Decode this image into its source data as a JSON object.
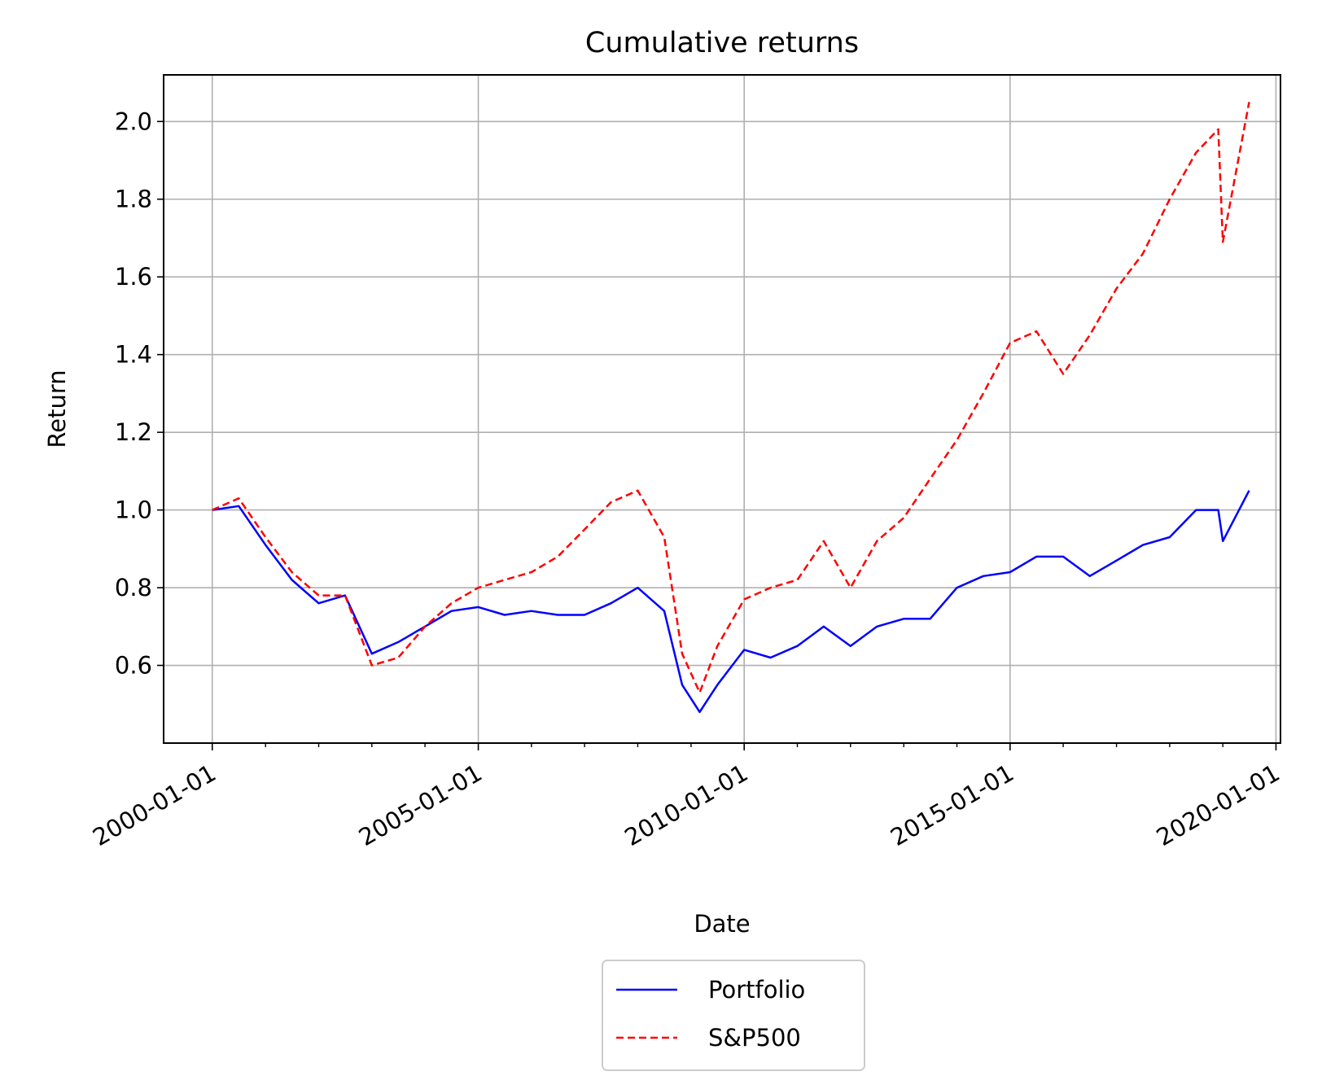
{
  "chart_data": {
    "type": "line",
    "title": "Cumulative returns",
    "xlabel": "Date",
    "ylabel": "Return",
    "x_axis_type": "date",
    "xlim": [
      "1999-02-01",
      "2020-02-01"
    ],
    "ylim": [
      0.4,
      2.12
    ],
    "x_ticks": [
      "2000-01-01",
      "2005-01-01",
      "2010-01-01",
      "2015-01-01",
      "2020-01-01"
    ],
    "y_ticks": [
      0.6,
      0.8,
      1.0,
      1.2,
      1.4,
      1.6,
      1.8,
      2.0
    ],
    "y_tick_labels": [
      "0.6",
      "0.8",
      "1.0",
      "1.2",
      "1.4",
      "1.6",
      "1.8",
      "2.0"
    ],
    "grid": true,
    "legend_position": "below-center",
    "x": [
      "2000-01-01",
      "2000-07-01",
      "2001-01-01",
      "2001-07-01",
      "2002-01-01",
      "2002-07-01",
      "2003-01-01",
      "2003-07-01",
      "2004-01-01",
      "2004-07-01",
      "2005-01-01",
      "2005-07-01",
      "2006-01-01",
      "2006-07-01",
      "2007-01-01",
      "2007-07-01",
      "2008-01-01",
      "2008-07-01",
      "2008-11-01",
      "2009-03-01",
      "2009-07-01",
      "2010-01-01",
      "2010-07-01",
      "2011-01-01",
      "2011-07-01",
      "2012-01-01",
      "2012-07-01",
      "2013-01-01",
      "2013-07-01",
      "2014-01-01",
      "2014-07-01",
      "2015-01-01",
      "2015-07-01",
      "2016-01-01",
      "2016-07-01",
      "2017-01-01",
      "2017-07-01",
      "2018-01-01",
      "2018-07-01",
      "2018-12-01",
      "2019-01-01",
      "2019-07-01"
    ],
    "series": [
      {
        "name": "Portfolio",
        "color": "#0000ff",
        "style": "solid",
        "values": [
          1.0,
          1.01,
          0.91,
          0.82,
          0.76,
          0.78,
          0.63,
          0.66,
          0.7,
          0.74,
          0.75,
          0.73,
          0.74,
          0.73,
          0.73,
          0.76,
          0.8,
          0.74,
          0.55,
          0.48,
          0.55,
          0.64,
          0.62,
          0.65,
          0.7,
          0.65,
          0.7,
          0.72,
          0.72,
          0.8,
          0.83,
          0.84,
          0.88,
          0.88,
          0.83,
          0.87,
          0.91,
          0.93,
          1.0,
          1.0,
          0.92,
          1.05
        ]
      },
      {
        "name": "S&P500",
        "color": "#ff0000",
        "style": "dashed",
        "values": [
          1.0,
          1.03,
          0.93,
          0.84,
          0.78,
          0.78,
          0.6,
          0.62,
          0.7,
          0.76,
          0.8,
          0.82,
          0.84,
          0.88,
          0.95,
          1.02,
          1.05,
          0.93,
          0.63,
          0.53,
          0.65,
          0.77,
          0.8,
          0.82,
          0.92,
          0.8,
          0.92,
          0.98,
          1.08,
          1.18,
          1.3,
          1.43,
          1.46,
          1.35,
          1.45,
          1.57,
          1.66,
          1.8,
          1.92,
          1.98,
          1.69,
          2.05
        ]
      }
    ]
  }
}
